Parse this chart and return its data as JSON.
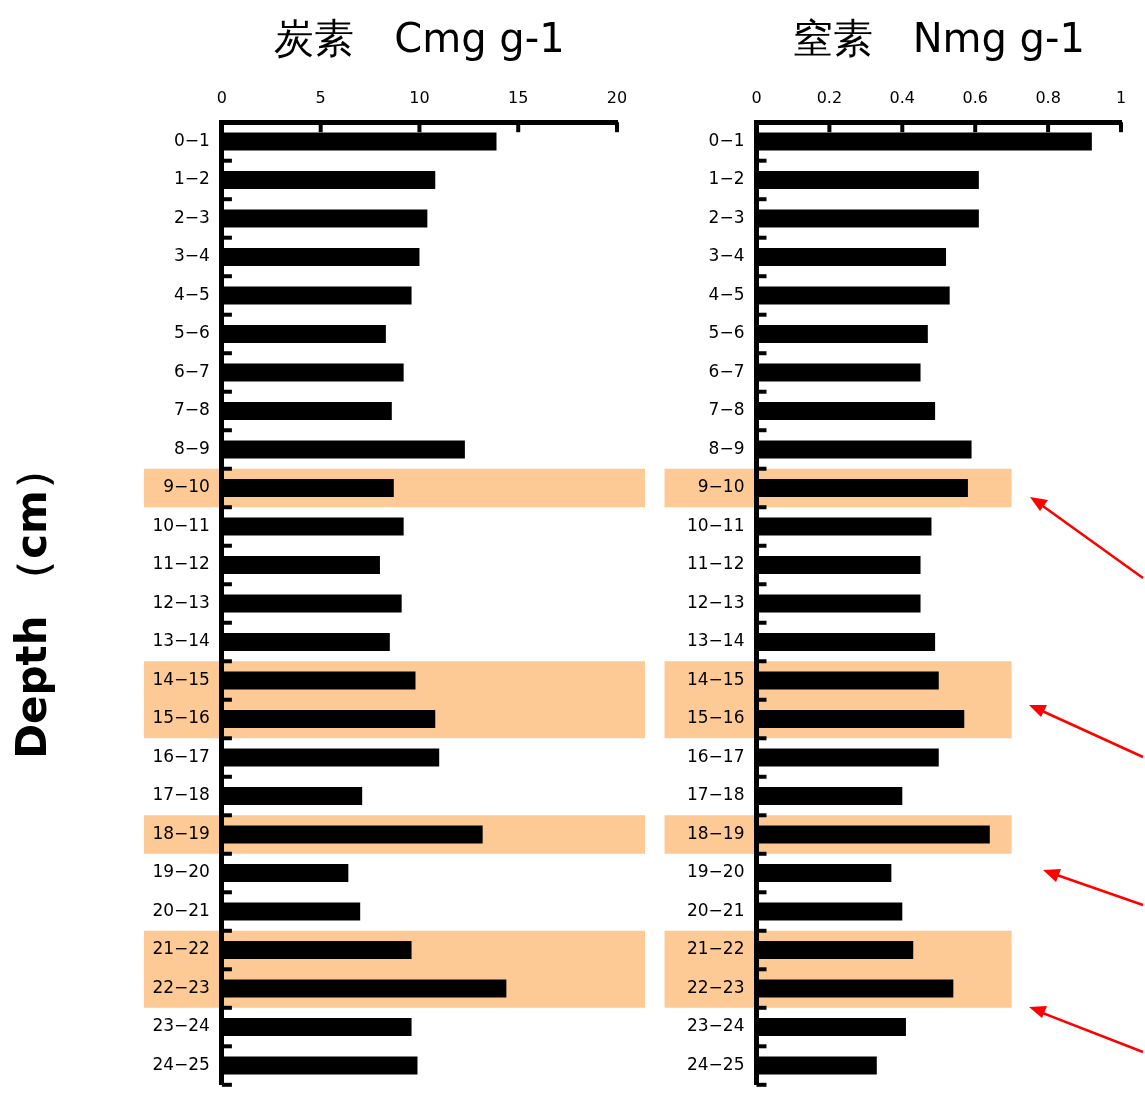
{
  "chart_data": [
    {
      "type": "bar",
      "orientation": "horizontal",
      "title": "炭素　Cmg g-1",
      "ylabel": "Depth （cm）",
      "categories": [
        "0−1",
        "1−2",
        "2−3",
        "3−4",
        "4−5",
        "5−6",
        "6−7",
        "7−8",
        "8−9",
        "9−10",
        "10−11",
        "11−12",
        "12−13",
        "13−14",
        "14−15",
        "15−16",
        "16−17",
        "17−18",
        "18−19",
        "19−20",
        "20−21",
        "21−22",
        "22−23",
        "23−24",
        "24−25"
      ],
      "values": [
        13.9,
        10.8,
        10.4,
        10.0,
        9.6,
        8.3,
        9.2,
        8.6,
        12.3,
        8.7,
        9.2,
        8.0,
        9.1,
        8.5,
        9.8,
        10.8,
        11.0,
        7.1,
        13.2,
        6.4,
        7.0,
        9.6,
        14.4,
        9.6,
        9.9
      ],
      "color": "#000000",
      "xlim": [
        0,
        20
      ],
      "xticks": [
        0,
        5,
        10,
        15,
        20
      ],
      "bands": [
        {
          "axis": "y",
          "from": "9−10",
          "to": "9−10",
          "color": "#fdca96"
        },
        {
          "axis": "y",
          "from": "14−15",
          "to": "15−16",
          "color": "#fdca96"
        },
        {
          "axis": "y",
          "from": "18−19",
          "to": "18−19",
          "color": "#fdca96"
        },
        {
          "axis": "y",
          "from": "21−22",
          "to": "22−23",
          "color": "#fdca96"
        }
      ]
    },
    {
      "type": "bar",
      "orientation": "horizontal",
      "title": "窒素　Nmg g-1",
      "categories": [
        "0−1",
        "1−2",
        "2−3",
        "3−4",
        "4−5",
        "5−6",
        "6−7",
        "7−8",
        "8−9",
        "9−10",
        "10−11",
        "11−12",
        "12−13",
        "13−14",
        "14−15",
        "15−16",
        "16−17",
        "17−18",
        "18−19",
        "19−20",
        "20−21",
        "21−22",
        "22−23",
        "23−24",
        "24−25"
      ],
      "values": [
        0.92,
        0.61,
        0.61,
        0.52,
        0.53,
        0.47,
        0.45,
        0.49,
        0.59,
        0.58,
        0.48,
        0.45,
        0.45,
        0.49,
        0.5,
        0.57,
        0.5,
        0.4,
        0.64,
        0.37,
        0.4,
        0.43,
        0.54,
        0.41,
        0.33
      ],
      "color": "#000000",
      "xlim": [
        0,
        1
      ],
      "xticks": [
        0,
        0.2,
        0.4,
        0.6,
        0.8,
        1
      ],
      "bands": [
        {
          "axis": "y",
          "from": "9−10",
          "to": "9−10",
          "color": "#fdca96"
        },
        {
          "axis": "y",
          "from": "14−15",
          "to": "15−16",
          "color": "#fdca96"
        },
        {
          "axis": "y",
          "from": "18−19",
          "to": "18−19",
          "color": "#fdca96"
        },
        {
          "axis": "y",
          "from": "21−22",
          "to": "22−23",
          "color": "#fdca96"
        }
      ]
    }
  ]
}
